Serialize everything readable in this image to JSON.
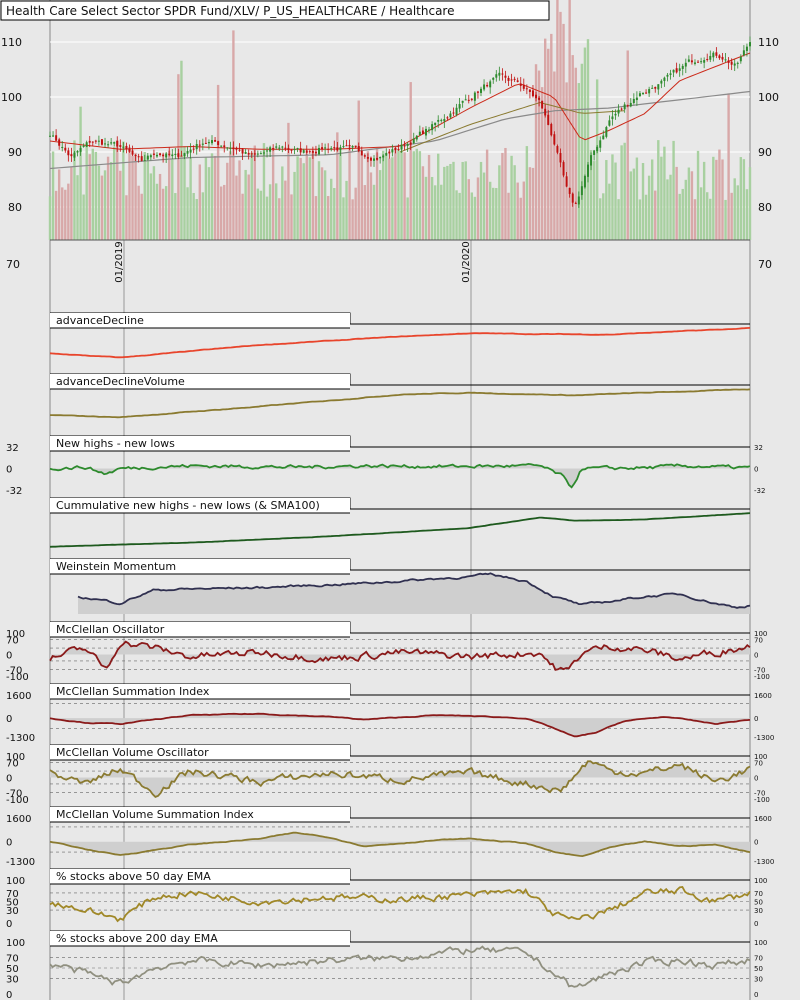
{
  "title": "Health Care Select Sector SPDR Fund/XLV/ P_US_HEALTHCARE / Healthcare",
  "colors": {
    "background": "#e8e8e8",
    "grid": "#ffffff",
    "up_candle": "#2d8a2d",
    "down_candle": "#c01010",
    "volume_up": "#a8d0a0",
    "volume_down": "#d8a8a8",
    "sma_red": "#cc2a1a",
    "sma_gray": "#8a8a8a",
    "sma_olive": "#8a7a30",
    "fill": "#cfcfcf"
  },
  "chart_data": [
    {
      "type": "candlestick",
      "title": "Health Care Select Sector SPDR Fund/XLV/ P_US_HEALTHCARE / Healthcare",
      "ylim": [
        74,
        114
      ],
      "y_ticks": [
        "110",
        "100",
        "90",
        "80"
      ],
      "below_tick": "70",
      "x_ticks": [
        "01/2019",
        "01/2020"
      ],
      "series": [
        {
          "key": "price",
          "anchors": [
            [
              0,
              93.5
            ],
            [
              0.03,
              89
            ],
            [
              0.06,
              92
            ],
            [
              0.1,
              91
            ],
            [
              0.13,
              88
            ],
            [
              0.15,
              90
            ],
            [
              0.18,
              89
            ],
            [
              0.22,
              92
            ],
            [
              0.26,
              91
            ],
            [
              0.29,
              89
            ],
            [
              0.33,
              91
            ],
            [
              0.36,
              90
            ],
            [
              0.4,
              91
            ],
            [
              0.44,
              90
            ],
            [
              0.47,
              89
            ],
            [
              0.51,
              91.5
            ],
            [
              0.55,
              95
            ],
            [
              0.58,
              98
            ],
            [
              0.61,
              101
            ],
            [
              0.64,
              103.5
            ],
            [
              0.67,
              102.5
            ],
            [
              0.7,
              99
            ],
            [
              0.72,
              92
            ],
            [
              0.74,
              82
            ],
            [
              0.75,
              80
            ],
            [
              0.77,
              88
            ],
            [
              0.8,
              96
            ],
            [
              0.84,
              100.5
            ],
            [
              0.88,
              103
            ],
            [
              0.91,
              106
            ],
            [
              0.94,
              108
            ],
            [
              0.96,
              107.5
            ],
            [
              0.98,
              105.5
            ],
            [
              1.0,
              110
            ]
          ]
        },
        {
          "key": "sma50",
          "anchors": [
            [
              0,
              92
            ],
            [
              0.1,
              90.5
            ],
            [
              0.2,
              91
            ],
            [
              0.3,
              90.5
            ],
            [
              0.4,
              90.5
            ],
            [
              0.5,
              91
            ],
            [
              0.6,
              98
            ],
            [
              0.67,
              102.5
            ],
            [
              0.72,
              100
            ],
            [
              0.76,
              92
            ],
            [
              0.8,
              94
            ],
            [
              0.85,
              97
            ],
            [
              0.9,
              103
            ],
            [
              1.0,
              108
            ]
          ]
        },
        {
          "key": "sma200",
          "anchors": [
            [
              0,
              87
            ],
            [
              0.2,
              89
            ],
            [
              0.4,
              89.5
            ],
            [
              0.55,
              92
            ],
            [
              0.65,
              96
            ],
            [
              0.72,
              97.5
            ],
            [
              0.8,
              98
            ],
            [
              0.9,
              99.5
            ],
            [
              1.0,
              101
            ]
          ]
        },
        {
          "key": "sma_olive",
          "anchors": [
            [
              0.5,
              90
            ],
            [
              0.6,
              95
            ],
            [
              0.7,
              99
            ],
            [
              0.76,
              97
            ],
            [
              0.82,
              97.5
            ]
          ]
        }
      ]
    },
    {
      "type": "line",
      "title": "advanceDecline",
      "color": "#e8452c",
      "anchors": [
        [
          0,
          0.3
        ],
        [
          0.1,
          0.2
        ],
        [
          0.3,
          0.5
        ],
        [
          0.5,
          0.7
        ],
        [
          0.6,
          0.78
        ],
        [
          0.7,
          0.76
        ],
        [
          0.8,
          0.75
        ],
        [
          1.0,
          0.9
        ]
      ]
    },
    {
      "type": "line",
      "title": "advanceDeclineVolume",
      "color": "#8a7a30",
      "anchors": [
        [
          0,
          0.3
        ],
        [
          0.1,
          0.25
        ],
        [
          0.3,
          0.5
        ],
        [
          0.5,
          0.78
        ],
        [
          0.6,
          0.82
        ],
        [
          0.75,
          0.76
        ],
        [
          0.85,
          0.82
        ],
        [
          1.0,
          0.9
        ]
      ]
    },
    {
      "type": "line",
      "title": "New highs - new lows",
      "color": "#2d8a2d",
      "ylim": [
        -32,
        32
      ],
      "y_ticks_left": [
        "32",
        "0",
        "-32"
      ],
      "y_ticks_right": [
        "32",
        "0",
        "-32"
      ],
      "anchors": [
        [
          0,
          0
        ],
        [
          0.05,
          2
        ],
        [
          0.08,
          -8
        ],
        [
          0.1,
          0
        ],
        [
          0.2,
          4
        ],
        [
          0.35,
          2
        ],
        [
          0.45,
          4
        ],
        [
          0.55,
          3
        ],
        [
          0.7,
          4
        ],
        [
          0.73,
          -10
        ],
        [
          0.745,
          -28
        ],
        [
          0.76,
          0
        ],
        [
          0.85,
          1
        ],
        [
          0.9,
          4
        ],
        [
          1.0,
          1
        ]
      ],
      "baseline": 0
    },
    {
      "type": "line",
      "title": "Cummulative new highs - new lows (& SMA100)",
      "color": "#1e5a1e",
      "anchors": [
        [
          0,
          0.1
        ],
        [
          0.2,
          0.2
        ],
        [
          0.4,
          0.35
        ],
        [
          0.6,
          0.55
        ],
        [
          0.7,
          0.8
        ],
        [
          0.75,
          0.72
        ],
        [
          0.85,
          0.75
        ],
        [
          1.0,
          0.9
        ]
      ]
    },
    {
      "type": "area",
      "title": "Weinstein Momentum",
      "color": "#303050",
      "anchors": [
        [
          0.04,
          0.4
        ],
        [
          0.1,
          0.25
        ],
        [
          0.15,
          0.55
        ],
        [
          0.3,
          0.6
        ],
        [
          0.45,
          0.7
        ],
        [
          0.6,
          0.85
        ],
        [
          0.63,
          0.9
        ],
        [
          0.68,
          0.75
        ],
        [
          0.72,
          0.4
        ],
        [
          0.76,
          0.2
        ],
        [
          0.85,
          0.4
        ],
        [
          0.9,
          0.45
        ],
        [
          0.95,
          0.25
        ],
        [
          0.98,
          0.15
        ],
        [
          1.0,
          0.2
        ]
      ]
    },
    {
      "type": "line",
      "title": "McClellan Oscillator",
      "color": "#8a1a1a",
      "ylim": [
        -100,
        100
      ],
      "y_ticks_left": [
        "100",
        "70",
        "0",
        "-70",
        "-100"
      ],
      "y_ticks_right": [
        "100",
        "70",
        "0",
        "-70",
        "-100"
      ],
      "anchors": [
        [
          0,
          -20
        ],
        [
          0.05,
          30
        ],
        [
          0.08,
          -70
        ],
        [
          0.1,
          60
        ],
        [
          0.15,
          30
        ],
        [
          0.2,
          -10
        ],
        [
          0.3,
          10
        ],
        [
          0.4,
          -20
        ],
        [
          0.5,
          10
        ],
        [
          0.6,
          -10
        ],
        [
          0.7,
          10
        ],
        [
          0.72,
          -60
        ],
        [
          0.74,
          -80
        ],
        [
          0.76,
          10
        ],
        [
          0.8,
          40
        ],
        [
          0.85,
          20
        ],
        [
          0.9,
          -20
        ],
        [
          0.95,
          10
        ],
        [
          1.0,
          40
        ]
      ],
      "baseline": 0,
      "dashed": [
        70,
        30,
        -30,
        -70
      ]
    },
    {
      "type": "line",
      "title": "McClellan Summation Index",
      "color": "#8a1a1a",
      "ylim": [
        -1300,
        1600
      ],
      "y_ticks_left": [
        "1600",
        "0",
        "-1300"
      ],
      "y_ticks_right": [
        "1600",
        "0",
        "-1300"
      ],
      "anchors": [
        [
          0,
          0
        ],
        [
          0.05,
          -300
        ],
        [
          0.1,
          -400
        ],
        [
          0.2,
          200
        ],
        [
          0.3,
          300
        ],
        [
          0.4,
          100
        ],
        [
          0.45,
          -100
        ],
        [
          0.55,
          200
        ],
        [
          0.6,
          150
        ],
        [
          0.68,
          0
        ],
        [
          0.72,
          -700
        ],
        [
          0.75,
          -1300
        ],
        [
          0.78,
          -1000
        ],
        [
          0.82,
          -200
        ],
        [
          0.88,
          100
        ],
        [
          0.95,
          -400
        ],
        [
          1.0,
          -100
        ]
      ],
      "baseline": 0,
      "dashed": [
        1000,
        -700
      ]
    },
    {
      "type": "line",
      "title": "McClellan Volume Oscillator",
      "color": "#8a7a30",
      "ylim": [
        -100,
        100
      ],
      "y_ticks_left": [
        "100",
        "70",
        "0",
        "-70",
        "-100"
      ],
      "y_ticks_right": [
        "100",
        "70",
        "0",
        "-70",
        "-100"
      ],
      "anchors": [
        [
          0,
          20
        ],
        [
          0.05,
          -30
        ],
        [
          0.1,
          40
        ],
        [
          0.15,
          -70
        ],
        [
          0.2,
          30
        ],
        [
          0.3,
          -20
        ],
        [
          0.4,
          20
        ],
        [
          0.5,
          -10
        ],
        [
          0.6,
          20
        ],
        [
          0.7,
          -40
        ],
        [
          0.73,
          -60
        ],
        [
          0.75,
          10
        ],
        [
          0.77,
          80
        ],
        [
          0.8,
          30
        ],
        [
          0.85,
          20
        ],
        [
          0.9,
          60
        ],
        [
          0.95,
          -20
        ],
        [
          1.0,
          40
        ]
      ],
      "baseline": 0,
      "dashed": [
        70,
        30,
        -30,
        -70
      ]
    },
    {
      "type": "line",
      "title": "McClellan Volume Summation Index",
      "color": "#8a7a30",
      "ylim": [
        -1300,
        1600
      ],
      "y_ticks_left": [
        "1600",
        "0",
        "-1300"
      ],
      "y_ticks_right": [
        "1600",
        "0",
        "-1300"
      ],
      "anchors": [
        [
          0,
          0
        ],
        [
          0.05,
          -500
        ],
        [
          0.1,
          -900
        ],
        [
          0.2,
          -200
        ],
        [
          0.3,
          200
        ],
        [
          0.35,
          600
        ],
        [
          0.4,
          300
        ],
        [
          0.45,
          -300
        ],
        [
          0.55,
          100
        ],
        [
          0.6,
          200
        ],
        [
          0.68,
          -100
        ],
        [
          0.72,
          -700
        ],
        [
          0.76,
          -1000
        ],
        [
          0.8,
          -400
        ],
        [
          0.85,
          0
        ],
        [
          0.9,
          -300
        ],
        [
          0.95,
          -200
        ],
        [
          1.0,
          -700
        ]
      ],
      "baseline": 0,
      "dashed": [
        1000,
        -700
      ]
    },
    {
      "type": "line",
      "title": "% stocks above 50 day EMA",
      "color": "#a08828",
      "ylim": [
        0,
        100
      ],
      "y_ticks_left": [
        "100",
        "70",
        "50",
        "30",
        "0"
      ],
      "y_ticks_right": [
        "100",
        "70",
        "50",
        "30",
        "0"
      ],
      "anchors": [
        [
          0,
          50
        ],
        [
          0.05,
          30
        ],
        [
          0.1,
          10
        ],
        [
          0.15,
          60
        ],
        [
          0.2,
          70
        ],
        [
          0.3,
          50
        ],
        [
          0.4,
          60
        ],
        [
          0.5,
          55
        ],
        [
          0.6,
          65
        ],
        [
          0.68,
          75
        ],
        [
          0.72,
          20
        ],
        [
          0.75,
          5
        ],
        [
          0.8,
          30
        ],
        [
          0.85,
          70
        ],
        [
          0.9,
          75
        ],
        [
          0.95,
          50
        ],
        [
          1.0,
          70
        ]
      ],
      "dashed": [
        70,
        50,
        30
      ]
    },
    {
      "type": "line",
      "title": "% stocks above 200 day EMA",
      "color": "#909080",
      "ylim": [
        0,
        100
      ],
      "y_ticks_left": [
        "100",
        "70",
        "50",
        "30",
        "0"
      ],
      "y_ticks_right": [
        "100",
        "70",
        "50",
        "30",
        "0"
      ],
      "anchors": [
        [
          0,
          60
        ],
        [
          0.05,
          40
        ],
        [
          0.1,
          20
        ],
        [
          0.15,
          50
        ],
        [
          0.2,
          65
        ],
        [
          0.3,
          55
        ],
        [
          0.4,
          65
        ],
        [
          0.5,
          70
        ],
        [
          0.6,
          85
        ],
        [
          0.68,
          80
        ],
        [
          0.72,
          40
        ],
        [
          0.75,
          10
        ],
        [
          0.8,
          40
        ],
        [
          0.85,
          60
        ],
        [
          0.9,
          65
        ],
        [
          0.95,
          55
        ],
        [
          1.0,
          65
        ]
      ],
      "dashed": [
        70,
        50,
        30
      ]
    }
  ]
}
